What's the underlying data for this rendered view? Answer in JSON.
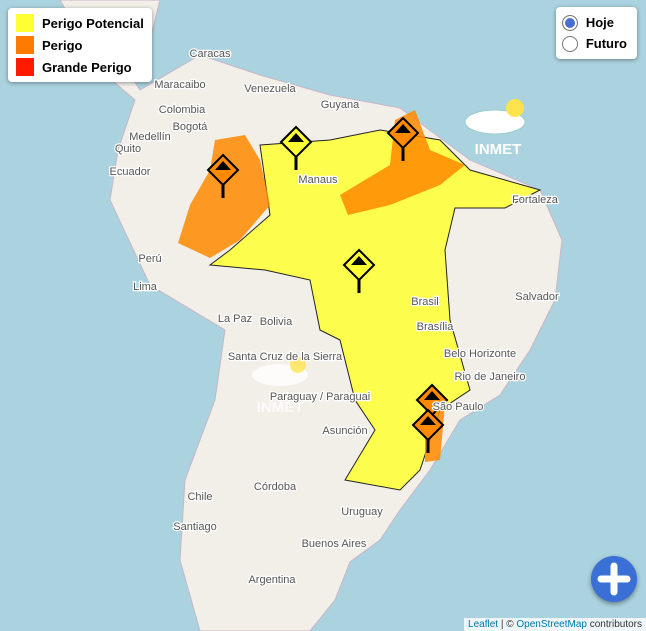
{
  "legend": [
    "Perigo Potencial",
    "Perigo",
    "Grande Perigo"
  ],
  "view_options": [
    "Hoje",
    "Futuro"
  ],
  "logo": "INMET",
  "places": [
    "Caracas",
    "Maracaibo",
    "Venezuela",
    "Guyana",
    "Colombia",
    "Medellín",
    "Bogotá",
    "Quito",
    "Ecuador",
    "Perú",
    "Lima",
    "Manaus",
    "Brasil",
    "Brasília",
    "Bolivia",
    "La Paz",
    "Santa Cruz de la Sierra",
    "Paraguay / Paraguai",
    "Asunción",
    "Belo Horizonte",
    "Rio de Janeiro",
    "São Paulo",
    "Salvador",
    "Fortaleza",
    "Córdoba",
    "Santiago",
    "Argentina",
    "Buenos Aires",
    "Uruguay",
    "Chile"
  ],
  "attribution": [
    "Leaflet",
    "| ©",
    "OpenStreetMap",
    "contributors"
  ]
}
